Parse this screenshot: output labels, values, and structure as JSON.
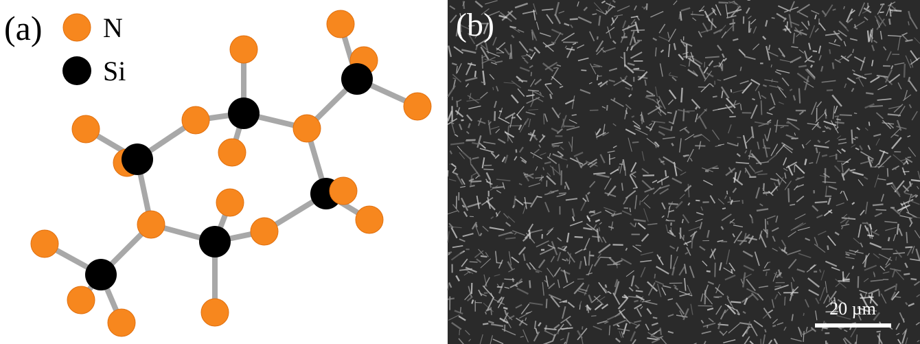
{
  "panel_a": {
    "label": "(a)",
    "legend": [
      "N",
      "Si"
    ]
  },
  "panel_b": {
    "label": "(b)",
    "scale_bar": "20 µm"
  }
}
